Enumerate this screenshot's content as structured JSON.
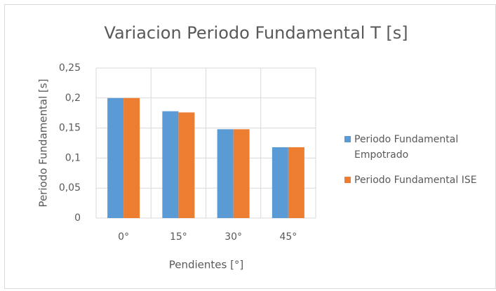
{
  "chart_data": {
    "type": "bar",
    "title": "Variacion Periodo Fundamental T [s]",
    "x_label": "Pendientes [°]",
    "y_label": "Periodo Fundamental [s]",
    "categories": [
      "0°",
      "15°",
      "30°",
      "45°"
    ],
    "series": [
      {
        "name": "Periodo Fundamental Empotrado",
        "color": "#5b9bd5",
        "values": [
          0.2,
          0.178,
          0.148,
          0.118
        ]
      },
      {
        "name": "Periodo Fundamental ISE",
        "color": "#ed7d31",
        "values": [
          0.2,
          0.176,
          0.148,
          0.118
        ]
      }
    ],
    "ylim": [
      0,
      0.25
    ],
    "yticks": [
      0,
      {
        "value": 0.05,
        "label": "0,05"
      },
      {
        "value": 0.1,
        "label": "0,1"
      },
      {
        "value": 0.15,
        "label": "0,15"
      },
      {
        "value": 0.2,
        "label": "0,2"
      },
      {
        "value": 0.25,
        "label": "0,25"
      }
    ],
    "grid": true,
    "legend": "right"
  }
}
